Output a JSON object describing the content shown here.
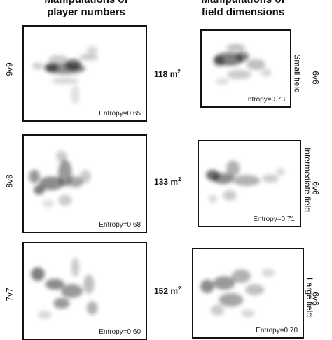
{
  "columns": {
    "left": {
      "title_line1": "Manipulations of",
      "title_line2": "player numbers"
    },
    "right": {
      "title_line1": "Manipulations of",
      "title_line2": "field dimensions"
    }
  },
  "rows": [
    {
      "left_label": "9v9",
      "area": "118 m",
      "area_sup": "2",
      "right_label": "6v6",
      "right_field": "Small field",
      "left_entropy": "Entropy=0.65",
      "right_entropy": "Entropy=0.73"
    },
    {
      "left_label": "8v8",
      "area": "133 m",
      "area_sup": "2",
      "right_label": "6v6",
      "right_field": "Intermediate field",
      "left_entropy": "Entropy=0.68",
      "right_entropy": "Entropy=0.71"
    },
    {
      "left_label": "7v7",
      "area": "152 m",
      "area_sup": "2",
      "right_label": "6v6",
      "right_field": "Large field",
      "left_entropy": "Entropy=0.60",
      "right_entropy": "Entropy=0.70"
    }
  ]
}
